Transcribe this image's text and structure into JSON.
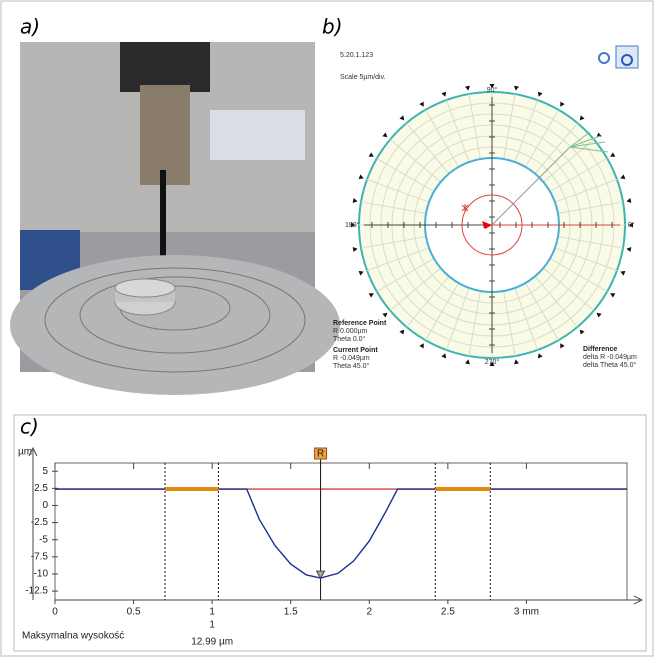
{
  "panel_a": {
    "label": "a)"
  },
  "panel_b": {
    "label": "b)",
    "version": "5.20.1.123",
    "scale": "Scale 5µm/div.",
    "angle_labels": [
      "90°",
      "180°",
      "0°",
      "270°"
    ],
    "reference_point": {
      "title": "Reference Point",
      "r": "R 0.000µm",
      "theta": "Theta 0.0°"
    },
    "current_point": {
      "title": "Current Point",
      "r": "R -0.049µm",
      "theta": "Theta 45.0°"
    },
    "difference": {
      "title": "Difference",
      "r": "delta R -0.049µm",
      "theta": "delta Theta 45.0°"
    }
  },
  "chart_data": {
    "type": "line",
    "label": "c)",
    "y_label": "µm",
    "xlim": [
      0,
      3.64
    ],
    "ylim": [
      -13.8,
      6.2
    ],
    "xticks": [
      0,
      0.5,
      1,
      1.5,
      2,
      2.5,
      {
        "value": 3,
        "label": "3 mm"
      }
    ],
    "yticks": [
      5,
      2.5,
      0,
      -2.5,
      -5,
      -7.5,
      -10,
      -12.5
    ],
    "series": [
      {
        "color": "#1a2f8f",
        "x": [
          0,
          1.0,
          1.22,
          1.3,
          1.4,
          1.5,
          1.6,
          1.69,
          1.8,
          1.9,
          2.0,
          2.1,
          2.18,
          2.5,
          3.64
        ],
        "values": [
          2.4,
          2.4,
          2.4,
          -2.02,
          -5.86,
          -8.56,
          -10.14,
          -10.6,
          -9.92,
          -8.11,
          -5.18,
          -1.11,
          2.4,
          2.4,
          2.4
        ]
      },
      {
        "color": "#d04040",
        "x": [
          0,
          3.64
        ],
        "values": [
          2.4,
          2.4
        ]
      },
      {
        "color": "#e08a10",
        "x": [
          0.7,
          1.04
        ],
        "values": [
          2.4,
          2.4
        ]
      },
      {
        "color": "#e08a10",
        "x": [
          2.42,
          2.77
        ],
        "values": [
          2.4,
          2.4
        ]
      }
    ],
    "markers": [
      0.7,
      1.04,
      2.42,
      2.77
    ],
    "cursor": {
      "x": 1.69,
      "label": "R"
    },
    "annotations": [
      "Maksymalna wysokość",
      "1",
      "12.99 µm"
    ]
  }
}
